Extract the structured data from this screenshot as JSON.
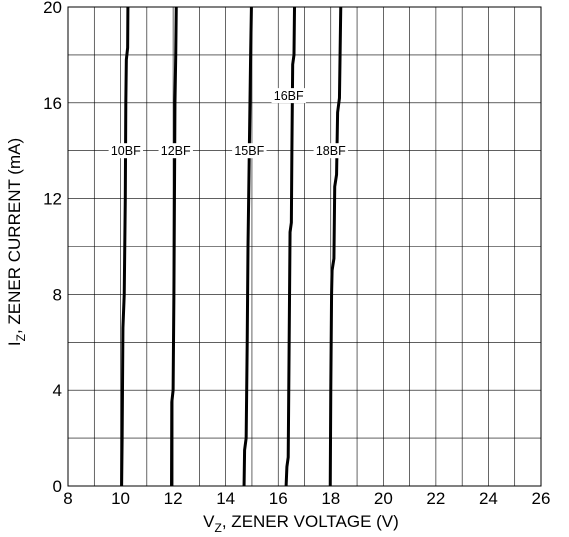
{
  "chart_data": {
    "type": "line",
    "xlabel_prefix": "V",
    "xlabel_sub": "Z",
    "xlabel_rest": ", ZENER VOLTAGE (V)",
    "ylabel_prefix": "I",
    "ylabel_sub": "Z",
    "ylabel_rest": ", ZENER CURRENT (mA)",
    "xlim": [
      8,
      26
    ],
    "ylim": [
      0,
      20
    ],
    "x_ticks": [
      "8",
      "10",
      "12",
      "14",
      "16",
      "18",
      "20",
      "22",
      "24",
      "26"
    ],
    "y_ticks": [
      "0",
      "4",
      "8",
      "12",
      "16",
      "20"
    ],
    "grid": true,
    "series": [
      {
        "name": "10BF",
        "label_at": [
          10.2,
          14
        ],
        "points": [
          [
            10.04,
            0
          ],
          [
            10.06,
            2
          ],
          [
            10.09,
            6.6
          ],
          [
            10.14,
            8
          ],
          [
            10.18,
            12
          ],
          [
            10.2,
            16
          ],
          [
            10.22,
            17.8
          ],
          [
            10.27,
            18.3
          ],
          [
            10.28,
            20
          ]
        ]
      },
      {
        "name": "12BF",
        "label_at": [
          12.1,
          14
        ],
        "points": [
          [
            11.94,
            0
          ],
          [
            11.95,
            3.5
          ],
          [
            12.0,
            4
          ],
          [
            12.03,
            8
          ],
          [
            12.05,
            12
          ],
          [
            12.07,
            16
          ],
          [
            12.1,
            18
          ],
          [
            12.12,
            20
          ]
        ]
      },
      {
        "name": "15BF",
        "label_at": [
          14.9,
          14
        ],
        "points": [
          [
            14.7,
            0
          ],
          [
            14.72,
            1.5
          ],
          [
            14.78,
            2
          ],
          [
            14.82,
            6
          ],
          [
            14.85,
            10
          ],
          [
            14.9,
            14
          ],
          [
            14.95,
            18
          ],
          [
            14.98,
            20
          ]
        ]
      },
      {
        "name": "16BF",
        "label_at": [
          16.4,
          16.3
        ],
        "points": [
          [
            16.3,
            0
          ],
          [
            16.33,
            0.8
          ],
          [
            16.38,
            1.2
          ],
          [
            16.45,
            10.6
          ],
          [
            16.5,
            11
          ],
          [
            16.52,
            14
          ],
          [
            16.55,
            17.6
          ],
          [
            16.6,
            18
          ],
          [
            16.62,
            20
          ]
        ]
      },
      {
        "name": "18BF",
        "label_at": [
          18.0,
          14
        ],
        "points": [
          [
            17.98,
            0
          ],
          [
            18.0,
            4
          ],
          [
            18.03,
            8
          ],
          [
            18.05,
            9
          ],
          [
            18.12,
            9.5
          ],
          [
            18.15,
            12.5
          ],
          [
            18.22,
            13
          ],
          [
            18.26,
            15.6
          ],
          [
            18.33,
            16.2
          ],
          [
            18.38,
            20
          ]
        ]
      }
    ]
  }
}
